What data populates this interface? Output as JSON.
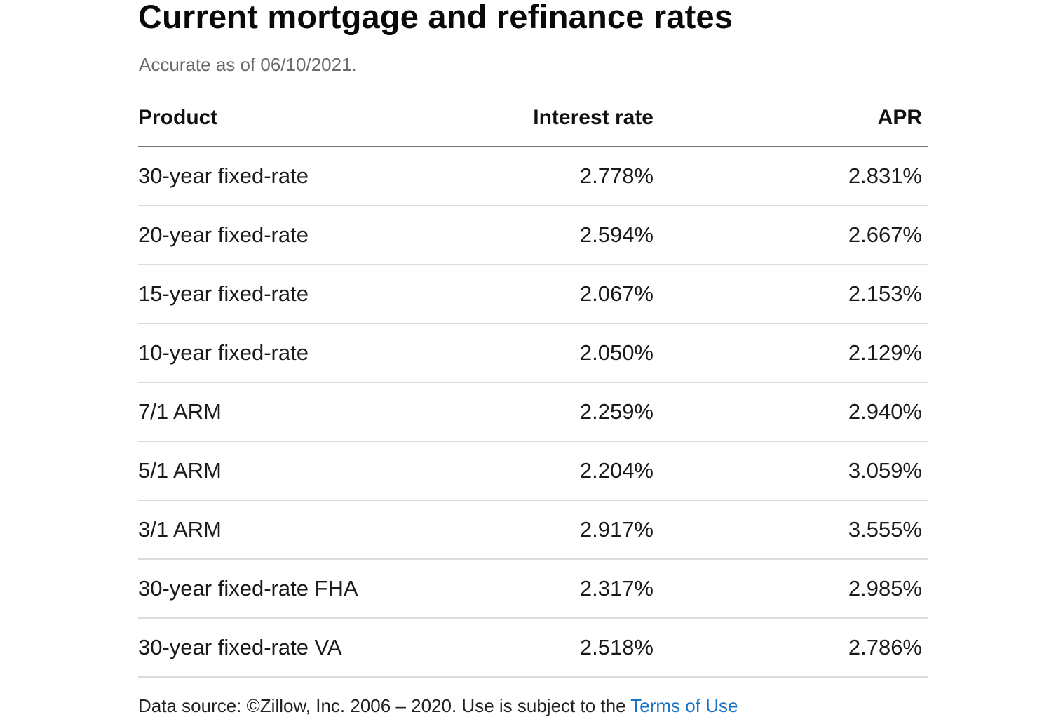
{
  "header": {
    "title": "Current mortgage and refinance rates",
    "subtitle": "Accurate as of 06/10/2021."
  },
  "table": {
    "columns": [
      "Product",
      "Interest rate",
      "APR"
    ],
    "rows": [
      {
        "product": "30-year fixed-rate",
        "interest_rate": "2.778%",
        "apr": "2.831%"
      },
      {
        "product": "20-year fixed-rate",
        "interest_rate": "2.594%",
        "apr": "2.667%"
      },
      {
        "product": "15-year fixed-rate",
        "interest_rate": "2.067%",
        "apr": "2.153%"
      },
      {
        "product": "10-year fixed-rate",
        "interest_rate": "2.050%",
        "apr": "2.129%"
      },
      {
        "product": "7/1 ARM",
        "interest_rate": "2.259%",
        "apr": "2.940%"
      },
      {
        "product": "5/1 ARM",
        "interest_rate": "2.204%",
        "apr": "3.059%"
      },
      {
        "product": "3/1 ARM",
        "interest_rate": "2.917%",
        "apr": "3.555%"
      },
      {
        "product": "30-year fixed-rate FHA",
        "interest_rate": "2.317%",
        "apr": "2.985%"
      },
      {
        "product": "30-year fixed-rate VA",
        "interest_rate": "2.518%",
        "apr": "2.786%"
      }
    ]
  },
  "footer": {
    "source_text": "Data source: ©Zillow, Inc. 2006 – 2020. Use is subject to the ",
    "terms_link": "Terms of Use"
  },
  "colors": {
    "link": "#1a73c7",
    "subtitle": "#6b6b6b",
    "header_rule": "#777777",
    "row_rule": "#dcdcdc"
  }
}
